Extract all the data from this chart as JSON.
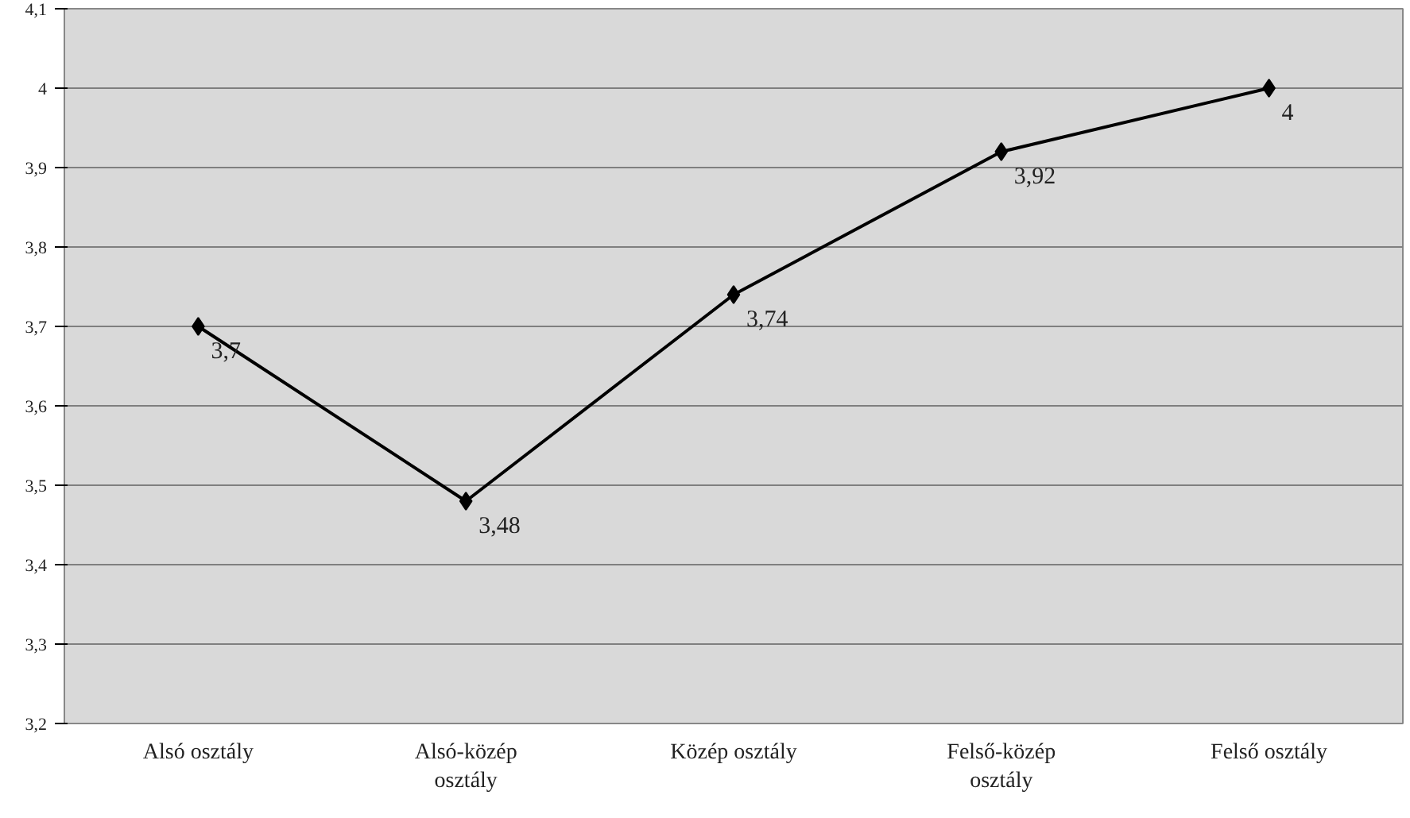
{
  "chart_data": {
    "type": "line",
    "categories": [
      "Alsó osztály",
      "Alsó-közép\nosztály",
      "Közép osztály",
      "Felső-közép\nosztály",
      "Felső osztály"
    ],
    "series": [
      {
        "color": "#000000",
        "values": [
          3.7,
          3.48,
          3.74,
          3.92,
          4.0
        ],
        "value_labels": [
          "3,7",
          "3,48",
          "3,74",
          "3,92",
          "4"
        ]
      }
    ],
    "ylim": [
      3.2,
      4.1
    ],
    "yticks": [
      {
        "value": 3.2,
        "label": "3,2"
      },
      {
        "value": 3.3,
        "label": "3,3"
      },
      {
        "value": 3.4,
        "label": "3,4"
      },
      {
        "value": 3.5,
        "label": "3,5"
      },
      {
        "value": 3.6,
        "label": "3,6"
      },
      {
        "value": 3.7,
        "label": "3,7"
      },
      {
        "value": 3.8,
        "label": "3,8"
      },
      {
        "value": 3.9,
        "label": "3,9"
      },
      {
        "value": 4.0,
        "label": "4"
      },
      {
        "value": 4.1,
        "label": "4,1"
      }
    ],
    "grid": "y",
    "marker": "diamond",
    "line_style": "solid"
  }
}
